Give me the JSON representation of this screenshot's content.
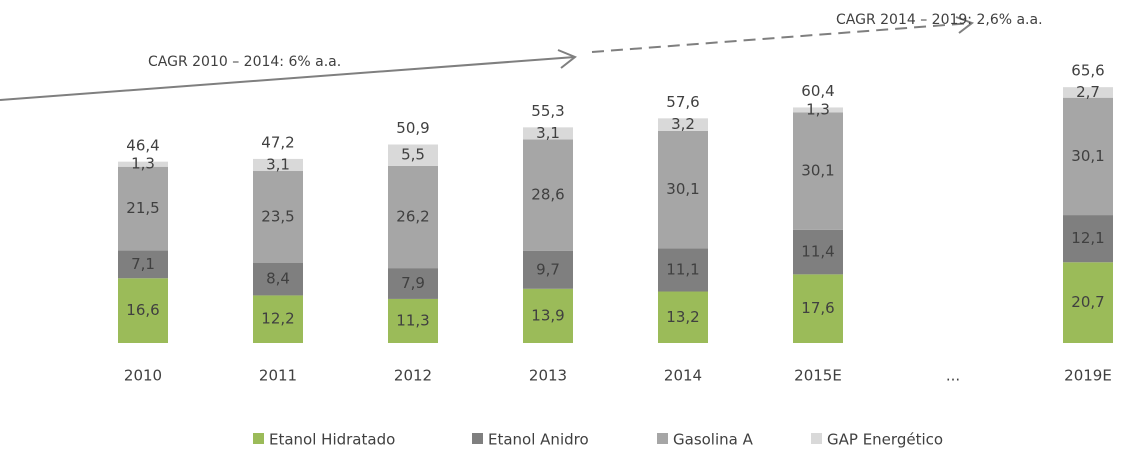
{
  "chart_data": {
    "type": "bar",
    "stacked": true,
    "categories": [
      "2010",
      "2011",
      "2012",
      "2013",
      "2014",
      "2015E",
      "...",
      "2019E"
    ],
    "series": [
      {
        "name": "Etanol Hidratado",
        "color": "#9bbb59",
        "values": [
          16.6,
          12.2,
          11.3,
          13.9,
          13.2,
          17.6,
          null,
          20.7
        ],
        "value_labels": [
          "16,6",
          "12,2",
          "11,3",
          "13,9",
          "13,2",
          "17,6",
          null,
          "20,7"
        ]
      },
      {
        "name": "Etanol Anidro",
        "color": "#7f7f7f",
        "values": [
          7.1,
          8.4,
          7.9,
          9.7,
          11.1,
          11.4,
          null,
          12.1
        ],
        "value_labels": [
          "7,1",
          "8,4",
          "7,9",
          "9,7",
          "11,1",
          "11,4",
          null,
          "12,1"
        ]
      },
      {
        "name": "Gasolina A",
        "color": "#a6a6a6",
        "values": [
          21.5,
          23.5,
          26.2,
          28.6,
          30.1,
          30.1,
          null,
          30.1
        ],
        "value_labels": [
          "21,5",
          "23,5",
          "26,2",
          "28,6",
          "30,1",
          "30,1",
          null,
          "30,1"
        ]
      },
      {
        "name": "GAP Energético",
        "color": "#d9d9d9",
        "values": [
          1.3,
          3.1,
          5.5,
          3.1,
          3.2,
          1.3,
          null,
          2.7
        ],
        "value_labels": [
          "1,3",
          "3,1",
          "5,5",
          "3,1",
          "3,2",
          "1,3",
          null,
          "2,7"
        ]
      }
    ],
    "totals": [
      46.4,
      47.2,
      50.9,
      55.3,
      57.6,
      60.4,
      null,
      65.6
    ],
    "total_labels": [
      "46,4",
      "47,2",
      "50,9",
      "55,3",
      "57,6",
      "60,4",
      null,
      "65,6"
    ],
    "annotations": [
      "CAGR 2010 – 2014: 6% a.a.",
      "CAGR 2014 – 2019: 2,6% a.a."
    ],
    "legend": "bottom"
  }
}
